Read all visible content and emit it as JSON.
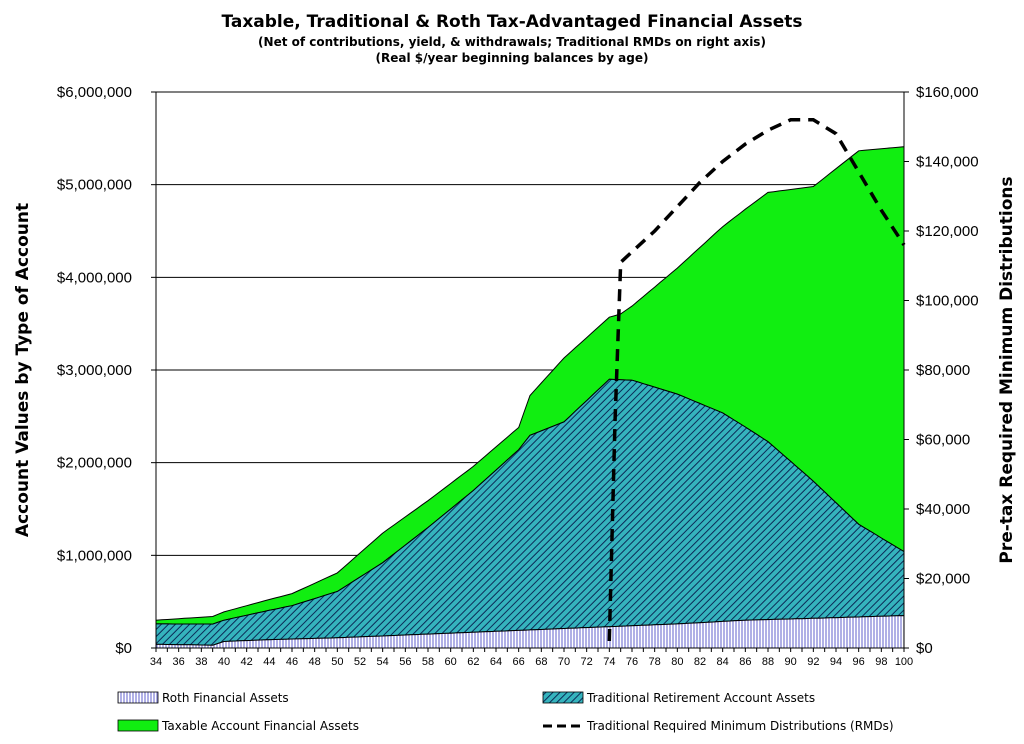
{
  "chart_data": {
    "type": "area",
    "title": "Taxable, Traditional & Roth Tax-Advantaged Financial Assets",
    "subtitle_1": "(Net of contributions,  yield, & withdrawals;  Traditional  RMDs on right axis)",
    "subtitle_2": "(Real $/year beginning balances by age)",
    "ylabel_left": "Account Values by Type of Account",
    "ylabel_right": "Pre-tax Required Minimum Distributions",
    "ylim_left": [
      0,
      6000000
    ],
    "ylim_right": [
      0,
      160000
    ],
    "xlim": [
      34,
      100
    ],
    "yticks_left": [
      "$0",
      "$1,000,000",
      "$2,000,000",
      "$3,000,000",
      "$4,000,000",
      "$5,000,000",
      "$6,000,000"
    ],
    "yticks_right": [
      "$0",
      "$20,000",
      "$40,000",
      "$60,000",
      "$80,000",
      "$100,000",
      "$120,000",
      "$140,000",
      "$160,000"
    ],
    "xticks": [
      "34",
      "36",
      "38",
      "40",
      "42",
      "44",
      "46",
      "48",
      "50",
      "52",
      "54",
      "56",
      "58",
      "60",
      "62",
      "64",
      "66",
      "68",
      "70",
      "72",
      "74",
      "76",
      "78",
      "80",
      "82",
      "84",
      "86",
      "88",
      "90",
      "92",
      "94",
      "96",
      "98",
      "100"
    ],
    "grid": "horizontal",
    "legend_position": "bottom",
    "colors": {
      "roth": "#c4c4f2",
      "traditional": "#2aa0a8",
      "taxable": "#11ee11",
      "rmd": "#000000"
    },
    "series": [
      {
        "name": "Roth Financial Assets",
        "kind": "area-stacked",
        "x": [
          34,
          39,
          40,
          44,
          50,
          56,
          62,
          68,
          74,
          80,
          86,
          92,
          100
        ],
        "values": [
          40000,
          30000,
          70000,
          90000,
          110000,
          140000,
          170000,
          200000,
          230000,
          260000,
          300000,
          320000,
          350000
        ]
      },
      {
        "name": "Traditional Retirement Account Assets",
        "kind": "area-stacked",
        "x": [
          34,
          40,
          46,
          50,
          54,
          58,
          62,
          66,
          67,
          70,
          74,
          75,
          76,
          80,
          84,
          88,
          92,
          96,
          100
        ],
        "values": [
          220000,
          230000,
          360000,
          500000,
          790000,
          1150000,
          1530000,
          1950000,
          2100000,
          2230000,
          2670000,
          2660000,
          2650000,
          2480000,
          2250000,
          1920000,
          1480000,
          1000000,
          690000
        ]
      },
      {
        "name": "Taxable Account Financial Assets",
        "kind": "area-stacked",
        "x": [
          34,
          40,
          46,
          50,
          54,
          58,
          62,
          66,
          67,
          70,
          74,
          75,
          76,
          80,
          84,
          88,
          92,
          96,
          100
        ],
        "values": [
          40000,
          90000,
          130000,
          200000,
          320000,
          290000,
          260000,
          240000,
          430000,
          690000,
          670000,
          710000,
          800000,
          1360000,
          2010000,
          2690000,
          3180000,
          4030000,
          4370000
        ]
      },
      {
        "name": "Traditional Required Minimum Distributions (RMDs)",
        "kind": "line-dashed-right-axis",
        "x": [
          74,
          74.5,
          75,
          76,
          78,
          80,
          82,
          84,
          86,
          88,
          90,
          92,
          94,
          96,
          98,
          100
        ],
        "values": [
          2000,
          65000,
          111000,
          114000,
          120000,
          127000,
          134000,
          140000,
          145000,
          149000,
          152000,
          152000,
          148000,
          137000,
          126000,
          116000
        ]
      }
    ]
  }
}
